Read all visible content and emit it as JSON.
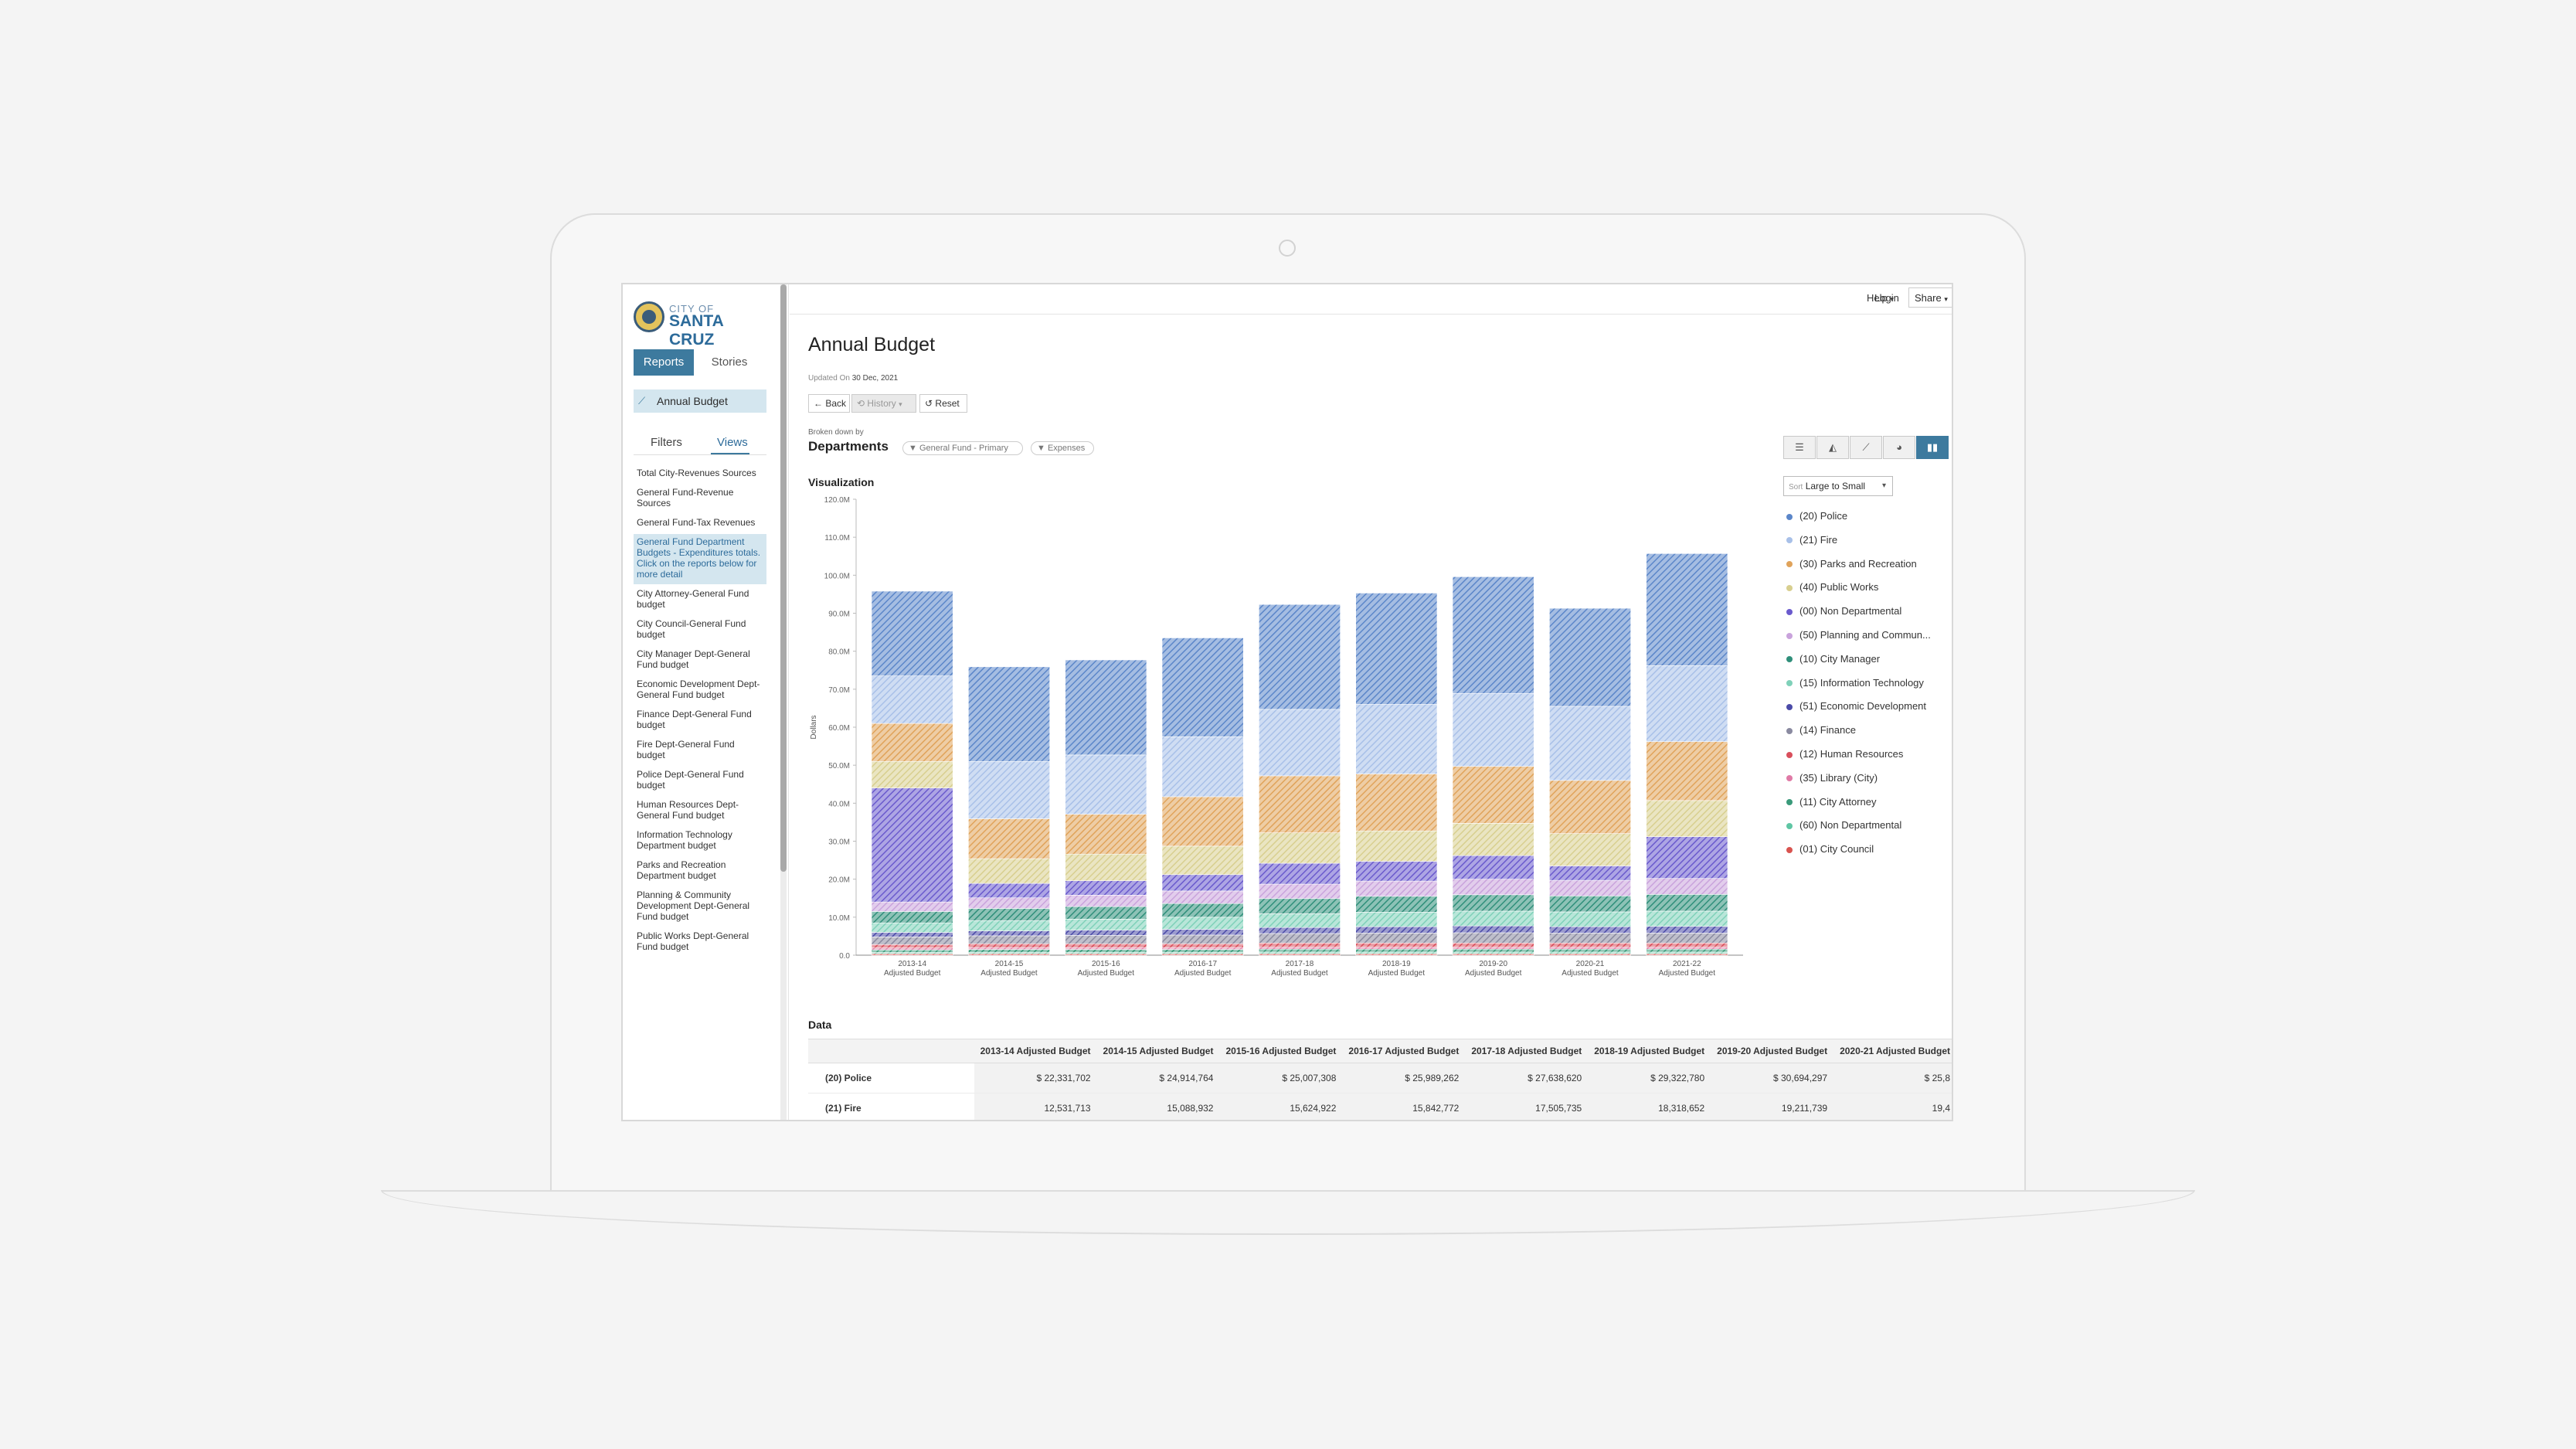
{
  "app": {
    "logo_small": "CITY OF",
    "logo_big": "SANTA CRUZ"
  },
  "sidebar": {
    "tab_reports": "Reports",
    "tab_stories": "Stories",
    "active_report": "Annual Budget",
    "tab_filters": "Filters",
    "tab_views": "Views",
    "views": [
      "Total City-Revenues Sources",
      "General Fund-Revenue Sources",
      "General Fund-Tax Revenues",
      "General Fund Department Budgets - Expenditures totals. Click on the reports below for more detail",
      "City Attorney-General Fund budget",
      "City Council-General Fund budget",
      "City Manager Dept-General Fund budget",
      "Economic Development Dept-General Fund budget",
      "Finance Dept-General Fund budget",
      "Fire Dept-General Fund budget",
      "Police Dept-General Fund budget",
      "Human Resources Dept-General Fund budget",
      "Information Technology Department budget",
      "Parks and Recreation Department budget",
      "Planning & Community Development Dept-General Fund budget",
      "Public Works Dept-General Fund budget"
    ],
    "selected_view_index": 3
  },
  "topbar": {
    "login": "Login",
    "help": "Help",
    "share": "Share"
  },
  "page": {
    "title": "Annual Budget",
    "updated_prefix": "Updated On",
    "updated_date": "30 Dec, 2021",
    "back": "Back",
    "history": "History",
    "reset": "Reset",
    "broken_down_by": "Broken down by",
    "dimension": "Departments",
    "filter_chips": [
      "General Fund - Primary",
      "Expenses"
    ],
    "vis_title": "Visualization",
    "data_title": "Data",
    "sort_prefix": "Sort",
    "sort_value": "Large to Small",
    "view_types": [
      "table-icon",
      "area-chart-icon",
      "line-chart-icon",
      "pie-chart-icon",
      "bar-chart-icon"
    ],
    "active_view_type": 4
  },
  "chart_data": {
    "type": "bar",
    "stacked": true,
    "ylabel": "Dollars",
    "ylim": [
      0,
      120
    ],
    "yticks": [
      "0.0",
      "10.0M",
      "20.0M",
      "30.0M",
      "40.0M",
      "50.0M",
      "60.0M",
      "70.0M",
      "80.0M",
      "90.0M",
      "100.0M",
      "110.0M",
      "120.0M"
    ],
    "categories": [
      "2013-14 Adjusted Budget",
      "2014-15 Adjusted Budget",
      "2015-16 Adjusted Budget",
      "2016-17 Adjusted Budget",
      "2017-18 Adjusted Budget",
      "2018-19 Adjusted Budget",
      "2019-20 Adjusted Budget",
      "2020-21 Adjusted Budget",
      "2021-22 Adjusted Budget"
    ],
    "category_lines": [
      [
        "2013-14",
        "Adjusted Budget"
      ],
      [
        "2014-15",
        "Adjusted Budget"
      ],
      [
        "2015-16",
        "Adjusted Budget"
      ],
      [
        "2016-17",
        "Adjusted Budget"
      ],
      [
        "2017-18",
        "Adjusted Budget"
      ],
      [
        "2018-19",
        "Adjusted Budget"
      ],
      [
        "2019-20",
        "Adjusted Budget"
      ],
      [
        "2020-21",
        "Adjusted Budget"
      ],
      [
        "2021-22",
        "Adjusted Budget"
      ]
    ],
    "unit": "M",
    "series": [
      {
        "name": "(01) City Council",
        "color": "#d9534f",
        "values": [
          0.4,
          0.4,
          0.4,
          0.4,
          0.4,
          0.4,
          0.4,
          0.4,
          0.4
        ]
      },
      {
        "name": "(60) Non Departmental",
        "color": "#5fc6a4",
        "values": [
          0.3,
          0.3,
          0.3,
          0.3,
          0.4,
          0.4,
          0.4,
          0.4,
          0.4
        ]
      },
      {
        "name": "(11) City Attorney",
        "color": "#3a9a7a",
        "values": [
          0.7,
          0.8,
          0.8,
          0.8,
          0.8,
          0.8,
          0.8,
          0.8,
          0.8
        ]
      },
      {
        "name": "(35) Library (City)",
        "color": "#e07aa6",
        "values": [
          0.5,
          0.5,
          0.5,
          0.5,
          0.5,
          0.5,
          0.5,
          0.5,
          0.5
        ]
      },
      {
        "name": "(12) Human Resources",
        "color": "#d94f5c",
        "values": [
          0.9,
          1.0,
          1.0,
          1.0,
          1.1,
          1.1,
          1.1,
          1.1,
          1.1
        ]
      },
      {
        "name": "(14) Finance",
        "color": "#8a8aa0",
        "values": [
          2.0,
          2.1,
          2.2,
          2.3,
          2.5,
          2.6,
          2.7,
          2.6,
          2.6
        ]
      },
      {
        "name": "(51) Economic Development",
        "color": "#4b4ba8",
        "values": [
          1.2,
          1.3,
          1.4,
          1.5,
          1.6,
          1.7,
          1.8,
          1.7,
          1.8
        ]
      },
      {
        "name": "(15) Information Technology",
        "color": "#7fd1b9",
        "values": [
          2.5,
          2.7,
          2.9,
          3.2,
          3.6,
          3.8,
          3.9,
          3.9,
          4.0
        ]
      },
      {
        "name": "(10) City Manager",
        "color": "#2f8f7a",
        "values": [
          3.0,
          3.2,
          3.3,
          3.6,
          4.0,
          4.2,
          4.3,
          4.2,
          4.4
        ]
      },
      {
        "name": "(50) Planning and Community Development",
        "color": "#c9a3dc",
        "values": [
          2.5,
          2.8,
          3.0,
          3.3,
          3.8,
          4.0,
          4.1,
          4.1,
          4.2
        ]
      },
      {
        "name": "(00) Non Departmental",
        "color": "#6a5acd",
        "values": [
          30.0,
          3.8,
          3.8,
          4.3,
          5.5,
          5.2,
          6.2,
          3.8,
          11.0
        ]
      },
      {
        "name": "(40) Public Works",
        "color": "#d8cf8f",
        "values": [
          7.0,
          6.5,
          7.0,
          7.5,
          8.0,
          8.0,
          8.5,
          8.5,
          9.5
        ]
      },
      {
        "name": "(30) Parks and Recreation",
        "color": "#e0a35a",
        "values": [
          10.0,
          10.5,
          10.5,
          13.0,
          15.0,
          15.0,
          15.0,
          14.0,
          15.5
        ]
      },
      {
        "name": "(21) Fire",
        "color": "#a8c0e8",
        "values": [
          12.5,
          15.1,
          15.6,
          15.8,
          17.5,
          18.3,
          19.2,
          19.5,
          20.0
        ]
      },
      {
        "name": "(20) Police",
        "color": "#5b86c9",
        "values": [
          22.3,
          24.9,
          25.0,
          26.0,
          27.6,
          29.3,
          30.7,
          25.8,
          29.5
        ]
      }
    ]
  },
  "legend": [
    {
      "label": "(20) Police",
      "color": "#5b86c9"
    },
    {
      "label": "(21) Fire",
      "color": "#a8c0e8"
    },
    {
      "label": "(30) Parks and Recreation",
      "color": "#e0a35a"
    },
    {
      "label": "(40) Public Works",
      "color": "#d8cf8f"
    },
    {
      "label": "(00) Non Departmental",
      "color": "#6a5acd"
    },
    {
      "label": "(50) Planning and Commun...",
      "color": "#c9a3dc"
    },
    {
      "label": "(10) City Manager",
      "color": "#2f8f7a"
    },
    {
      "label": "(15) Information Technology",
      "color": "#7fd1b9"
    },
    {
      "label": "(51) Economic Development",
      "color": "#4b4ba8"
    },
    {
      "label": "(14) Finance",
      "color": "#8a8aa0"
    },
    {
      "label": "(12) Human Resources",
      "color": "#d94f5c"
    },
    {
      "label": "(35) Library (City)",
      "color": "#e07aa6"
    },
    {
      "label": "(11) City Attorney",
      "color": "#3a9a7a"
    },
    {
      "label": "(60) Non Departmental",
      "color": "#5fc6a4"
    },
    {
      "label": "(01) City Council",
      "color": "#d9534f"
    }
  ],
  "table": {
    "headers": [
      "2013-14 Adjusted Budget",
      "2014-15 Adjusted Budget",
      "2015-16 Adjusted Budget",
      "2016-17 Adjusted Budget",
      "2017-18 Adjusted Budget",
      "2018-19 Adjusted Budget",
      "2019-20 Adjusted Budget",
      "2020-21 Adjusted Budget"
    ],
    "rows": [
      {
        "label": "(20) Police",
        "values": [
          "$ 22,331,702",
          "$ 24,914,764",
          "$ 25,007,308",
          "$ 25,989,262",
          "$ 27,638,620",
          "$ 29,322,780",
          "$ 30,694,297",
          "$ 25,8"
        ]
      },
      {
        "label": "(21) Fire",
        "values": [
          "12,531,713",
          "15,088,932",
          "15,624,922",
          "15,842,772",
          "17,505,735",
          "18,318,652",
          "19,211,739",
          "19,4"
        ]
      }
    ]
  }
}
